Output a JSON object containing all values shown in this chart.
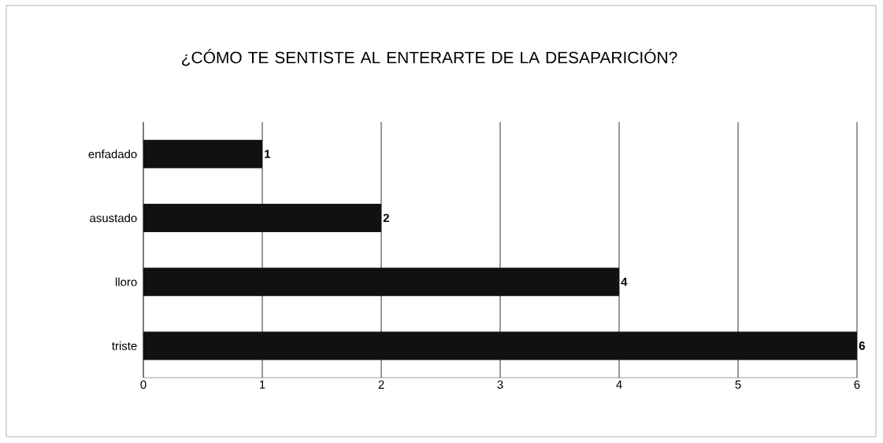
{
  "chart_data": {
    "type": "bar",
    "orientation": "horizontal",
    "title": "¿CÓMO TE SENTISTE AL ENTERARTE DE LA DESAPARICIÓN?",
    "categories": [
      "enfadado",
      "asustado",
      "lloro",
      "triste"
    ],
    "values": [
      1,
      2,
      4,
      6
    ],
    "color": "#111111",
    "xlim": [
      0,
      6
    ],
    "xticks": [
      0,
      1,
      2,
      3,
      4,
      5,
      6
    ],
    "grid": "x",
    "data_labels": true
  }
}
